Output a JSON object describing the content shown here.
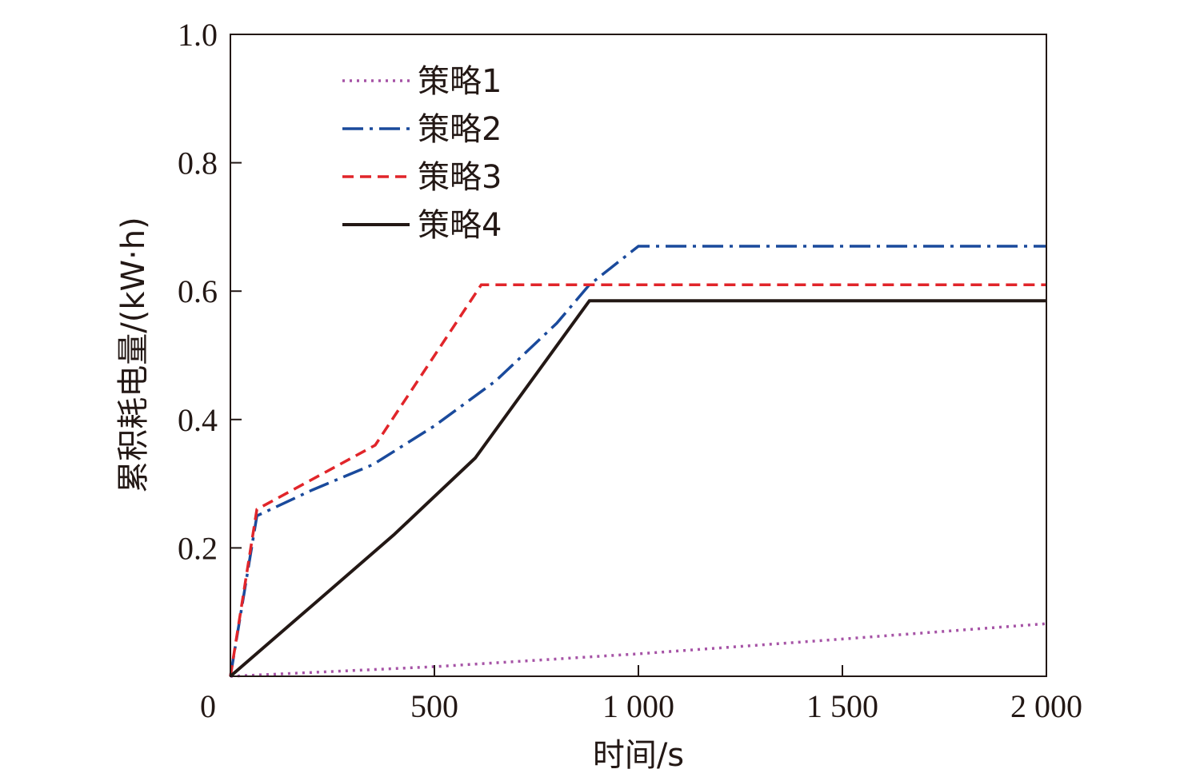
{
  "chart_data": {
    "type": "line",
    "xlabel": "时间/s",
    "ylabel": "累积耗电量/(kW·h)",
    "xlim": [
      0,
      2000
    ],
    "ylim": [
      0,
      1.0
    ],
    "x_ticks": [
      0,
      500,
      1000,
      1500,
      2000
    ],
    "x_tick_labels": [
      "0",
      "500",
      "1 000",
      "1 500",
      "2 000"
    ],
    "y_ticks": [
      0.2,
      0.4,
      0.6,
      0.8,
      1.0
    ],
    "y_tick_labels": [
      "0.2",
      "0.4",
      "0.6",
      "0.8",
      "1.0"
    ],
    "grid": false,
    "legend_position": "top-left",
    "series": [
      {
        "name": "策略1",
        "color": "#a653a6",
        "dash": "dotted",
        "x": [
          0,
          500,
          1000,
          1500,
          2000
        ],
        "y": [
          0,
          0.015,
          0.035,
          0.058,
          0.082
        ]
      },
      {
        "name": "策略2",
        "color": "#1a4a9c",
        "dash": "dash-dot",
        "x": [
          0,
          65,
          200,
          350,
          500,
          650,
          800,
          880,
          1000,
          2000
        ],
        "y": [
          0,
          0.25,
          0.29,
          0.33,
          0.39,
          0.46,
          0.55,
          0.61,
          0.67,
          0.67
        ]
      },
      {
        "name": "策略3",
        "color": "#e1252a",
        "dash": "dashed",
        "x": [
          0,
          65,
          355,
          615,
          2000
        ],
        "y": [
          0,
          0.26,
          0.36,
          0.61,
          0.61
        ]
      },
      {
        "name": "策略4",
        "color": "#231815",
        "dash": "solid",
        "x": [
          0,
          200,
          400,
          600,
          880,
          2000
        ],
        "y": [
          0,
          0.11,
          0.22,
          0.34,
          0.585,
          0.585
        ]
      }
    ]
  }
}
